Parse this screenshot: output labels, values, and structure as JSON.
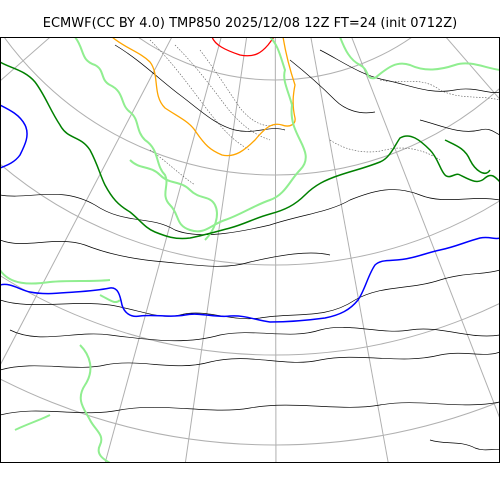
{
  "title": "ECMWF(CC BY 4.0) TMP850 2025/12/08 12Z FT=24 (init 0712Z)",
  "map": {
    "projection": "polar-stereographic",
    "graticule_color": "#b0b0b0",
    "coastline_color": "#000000",
    "contours": [
      {
        "level": "-30C",
        "color": "#ff0000"
      },
      {
        "level": "-24C",
        "color": "#ffa500"
      },
      {
        "level": "-18C",
        "color": "#90ee90"
      },
      {
        "level": "-6C",
        "color": "#008000"
      },
      {
        "level": "0C",
        "color": "#0000ff"
      }
    ]
  }
}
